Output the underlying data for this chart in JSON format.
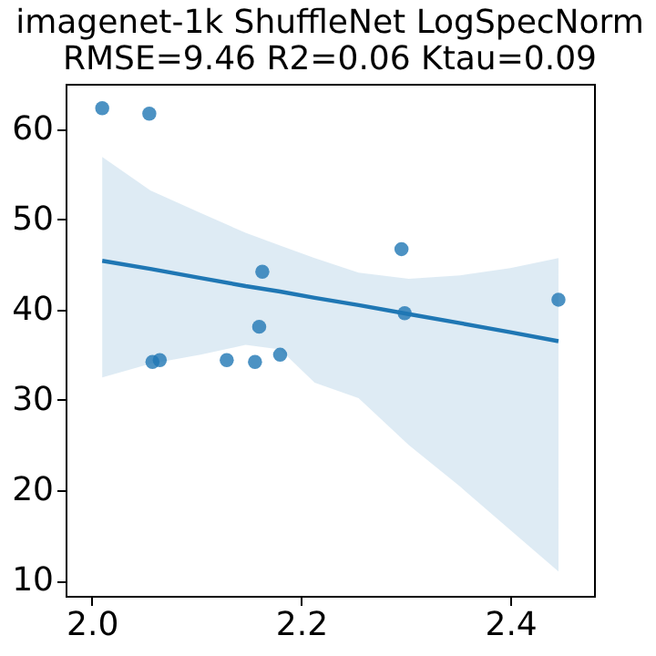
{
  "chart_data": {
    "type": "scatter",
    "title": "imagenet-1k ShuffleNet LogSpecNorm",
    "subtitle": "RMSE=9.46  R2=0.06 Ktau=0.09",
    "xlim": [
      1.975,
      2.48
    ],
    "ylim": [
      8.3,
      65.0
    ],
    "xticks": [
      {
        "value": 2.0,
        "label": "2.0"
      },
      {
        "value": 2.2,
        "label": "2.2"
      },
      {
        "value": 2.4,
        "label": "2.4"
      }
    ],
    "yticks": [
      10,
      20,
      30,
      40,
      50,
      60
    ],
    "grid": false,
    "marker": "circle",
    "series": [
      {
        "color": "#1f77b4",
        "x": [
          2.01,
          2.055,
          2.058,
          2.065,
          2.129,
          2.156,
          2.18,
          2.16,
          2.163,
          2.296,
          2.299,
          2.446
        ],
        "values": [
          62.3,
          61.7,
          34.2,
          34.4,
          34.4,
          34.2,
          35.0,
          38.1,
          44.2,
          46.7,
          39.6,
          41.1
        ]
      },
      {
        "type": "line",
        "color": "#1f77b4",
        "marker": "none",
        "x": [
          2.01,
          2.056,
          2.104,
          2.147,
          2.18,
          2.213,
          2.255,
          2.303,
          2.352,
          2.4,
          2.446
        ],
        "values": [
          45.4,
          44.5,
          43.5,
          42.6,
          42.0,
          41.3,
          40.5,
          39.5,
          38.5,
          37.5,
          36.5
        ],
        "upper": [
          56.9,
          53.2,
          50.7,
          48.5,
          47.1,
          45.7,
          44.1,
          43.4,
          43.8,
          44.6,
          45.7
        ],
        "lower": [
          32.5,
          34.0,
          35.0,
          36.1,
          35.6,
          31.9,
          30.2,
          25.0,
          20.4,
          15.6,
          11.0
        ]
      }
    ]
  }
}
